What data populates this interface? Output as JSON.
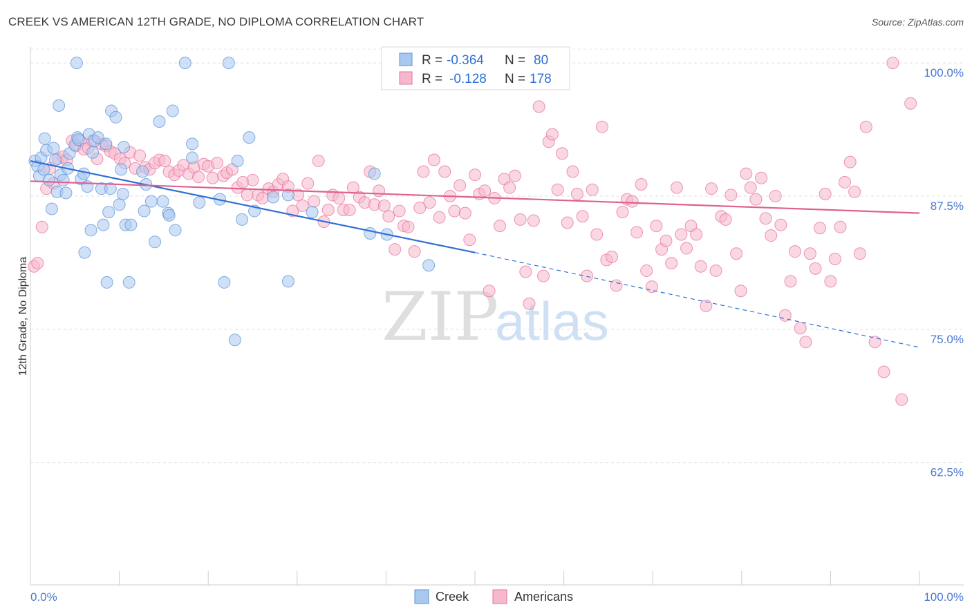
{
  "header": {
    "title": "CREEK VS AMERICAN 12TH GRADE, NO DIPLOMA CORRELATION CHART",
    "source": "Source: ZipAtlas.com"
  },
  "watermark": {
    "zip": "ZIP",
    "atlas": "atlas"
  },
  "chart_data": {
    "type": "scatter",
    "title": "CREEK VS AMERICAN 12TH GRADE, NO DIPLOMA CORRELATION CHART",
    "xlabel": "",
    "ylabel": "12th Grade, No Diploma",
    "xlim": [
      0,
      100
    ],
    "ylim": [
      51,
      101.5
    ],
    "x_tick_labels": [
      "0.0%",
      "100.0%"
    ],
    "y_ticks": [
      100,
      87.5,
      75,
      62.5
    ],
    "y_tick_labels": [
      "100.0%",
      "87.5%",
      "75.0%",
      "62.5%"
    ],
    "grid": "horizontal dashed",
    "stats": [
      {
        "series": "Creek",
        "r_label": "R =",
        "r": "-0.364",
        "n_label": "N =",
        "n": "80"
      },
      {
        "series": "Americans",
        "r_label": "R =",
        "r": "-0.128",
        "n_label": "N =",
        "n": "178"
      }
    ],
    "series": [
      {
        "name": "Creek",
        "color": "#5b93d9",
        "fill": "#a9c8f0",
        "trend": {
          "x0": 0,
          "y0": 90.8,
          "x1": 50,
          "y1": 82.2,
          "dashed_to_x": 100,
          "dashed_to_y": 73.3
        },
        "points": [
          [
            0.5,
            90.8
          ],
          [
            0.8,
            90.3
          ],
          [
            1.0,
            89.4
          ],
          [
            1.2,
            91.1
          ],
          [
            1.5,
            90.0
          ],
          [
            1.6,
            92.9
          ],
          [
            1.8,
            91.8
          ],
          [
            2.1,
            89.0
          ],
          [
            2.4,
            86.3
          ],
          [
            2.6,
            92.0
          ],
          [
            2.8,
            90.9
          ],
          [
            3.0,
            87.9
          ],
          [
            3.2,
            96.0
          ],
          [
            3.4,
            89.5
          ],
          [
            3.7,
            89.0
          ],
          [
            4.0,
            87.8
          ],
          [
            4.2,
            90.1
          ],
          [
            4.4,
            91.5
          ],
          [
            5.0,
            92.3
          ],
          [
            5.2,
            100.0
          ],
          [
            5.3,
            93.0
          ],
          [
            5.4,
            92.8
          ],
          [
            5.7,
            89.1
          ],
          [
            6.0,
            89.6
          ],
          [
            6.1,
            82.2
          ],
          [
            6.4,
            88.4
          ],
          [
            6.6,
            93.3
          ],
          [
            6.8,
            84.3
          ],
          [
            7.0,
            91.6
          ],
          [
            7.2,
            92.7
          ],
          [
            7.6,
            93.0
          ],
          [
            8.0,
            88.2
          ],
          [
            8.2,
            84.8
          ],
          [
            8.5,
            92.4
          ],
          [
            8.6,
            79.4
          ],
          [
            8.8,
            86.0
          ],
          [
            9.0,
            88.2
          ],
          [
            9.1,
            95.5
          ],
          [
            9.6,
            94.9
          ],
          [
            10.0,
            86.7
          ],
          [
            10.2,
            90.0
          ],
          [
            10.4,
            87.7
          ],
          [
            10.5,
            92.1
          ],
          [
            10.7,
            84.8
          ],
          [
            11.1,
            79.4
          ],
          [
            11.3,
            84.8
          ],
          [
            12.6,
            89.8
          ],
          [
            12.8,
            86.1
          ],
          [
            13.0,
            88.6
          ],
          [
            13.6,
            87.0
          ],
          [
            14.0,
            83.2
          ],
          [
            14.5,
            94.5
          ],
          [
            14.9,
            87.0
          ],
          [
            15.5,
            85.9
          ],
          [
            15.6,
            85.7
          ],
          [
            16.0,
            95.5
          ],
          [
            16.3,
            84.3
          ],
          [
            17.4,
            100.0
          ],
          [
            18.2,
            92.4
          ],
          [
            18.2,
            91.1
          ],
          [
            19.0,
            86.9
          ],
          [
            21.3,
            87.2
          ],
          [
            21.8,
            79.4
          ],
          [
            22.3,
            100.0
          ],
          [
            23.0,
            74.0
          ],
          [
            23.3,
            90.8
          ],
          [
            23.8,
            85.3
          ],
          [
            24.6,
            93.0
          ],
          [
            25.2,
            86.1
          ],
          [
            27.3,
            87.4
          ],
          [
            29.0,
            87.6
          ],
          [
            29.0,
            79.5
          ],
          [
            31.7,
            86.0
          ],
          [
            38.2,
            84.0
          ],
          [
            38.7,
            89.6
          ],
          [
            40.1,
            83.9
          ],
          [
            44.8,
            81.0
          ]
        ]
      },
      {
        "name": "Americans",
        "color": "#e8719b",
        "fill": "#f5b8cc",
        "trend": {
          "x0": 0,
          "y0": 88.9,
          "x1": 100,
          "y1": 85.9
        },
        "points": [
          [
            0.4,
            80.9
          ],
          [
            0.8,
            81.2
          ],
          [
            1.3,
            84.6
          ],
          [
            1.8,
            88.2
          ],
          [
            2.2,
            90.1
          ],
          [
            2.6,
            88.7
          ],
          [
            3.1,
            91.0
          ],
          [
            3.7,
            91.2
          ],
          [
            4.1,
            90.9
          ],
          [
            4.7,
            92.7
          ],
          [
            5.1,
            92.2
          ],
          [
            5.6,
            92.7
          ],
          [
            6.0,
            91.9
          ],
          [
            6.5,
            92.0
          ],
          [
            7.0,
            92.7
          ],
          [
            7.5,
            91.0
          ],
          [
            8.0,
            92.4
          ],
          [
            8.5,
            92.2
          ],
          [
            9.0,
            91.7
          ],
          [
            9.5,
            91.5
          ],
          [
            10.1,
            91.0
          ],
          [
            10.6,
            90.6
          ],
          [
            11.2,
            91.6
          ],
          [
            11.8,
            90.1
          ],
          [
            12.3,
            91.3
          ],
          [
            12.9,
            90.2
          ],
          [
            13.4,
            90.0
          ],
          [
            14.0,
            90.6
          ],
          [
            14.5,
            90.9
          ],
          [
            15.1,
            90.8
          ],
          [
            15.6,
            89.8
          ],
          [
            16.2,
            89.5
          ],
          [
            16.7,
            89.9
          ],
          [
            17.2,
            90.4
          ],
          [
            17.8,
            89.6
          ],
          [
            18.4,
            90.2
          ],
          [
            18.9,
            89.3
          ],
          [
            19.5,
            90.5
          ],
          [
            20.0,
            90.3
          ],
          [
            20.5,
            89.2
          ],
          [
            21.0,
            90.6
          ],
          [
            21.7,
            89.4
          ],
          [
            22.1,
            89.7
          ],
          [
            22.7,
            90.0
          ],
          [
            23.3,
            88.3
          ],
          [
            23.9,
            88.8
          ],
          [
            24.4,
            87.6
          ],
          [
            25.0,
            89.0
          ],
          [
            25.6,
            87.6
          ],
          [
            26.1,
            87.3
          ],
          [
            26.8,
            88.2
          ],
          [
            27.3,
            87.9
          ],
          [
            27.9,
            88.6
          ],
          [
            28.4,
            89.1
          ],
          [
            29.0,
            88.4
          ],
          [
            29.5,
            86.1
          ],
          [
            30.1,
            87.6
          ],
          [
            30.6,
            86.6
          ],
          [
            31.2,
            88.7
          ],
          [
            31.9,
            87.0
          ],
          [
            32.4,
            90.8
          ],
          [
            33.0,
            85.1
          ],
          [
            33.5,
            86.2
          ],
          [
            34.0,
            87.6
          ],
          [
            34.7,
            87.3
          ],
          [
            35.2,
            86.2
          ],
          [
            35.9,
            86.2
          ],
          [
            36.3,
            88.3
          ],
          [
            37.0,
            87.4
          ],
          [
            37.6,
            86.9
          ],
          [
            38.2,
            89.8
          ],
          [
            38.7,
            86.7
          ],
          [
            39.2,
            88.0
          ],
          [
            39.8,
            86.6
          ],
          [
            40.3,
            85.6
          ],
          [
            41.0,
            82.5
          ],
          [
            41.5,
            86.1
          ],
          [
            42.0,
            84.7
          ],
          [
            42.5,
            84.6
          ],
          [
            43.2,
            82.3
          ],
          [
            43.8,
            86.4
          ],
          [
            44.2,
            89.8
          ],
          [
            44.9,
            86.9
          ],
          [
            45.4,
            90.9
          ],
          [
            46.0,
            85.5
          ],
          [
            46.6,
            89.8
          ],
          [
            47.2,
            87.5
          ],
          [
            47.7,
            86.1
          ],
          [
            48.3,
            88.5
          ],
          [
            48.9,
            85.9
          ],
          [
            49.4,
            83.4
          ],
          [
            50.0,
            89.5
          ],
          [
            50.5,
            87.7
          ],
          [
            51.1,
            88.0
          ],
          [
            51.6,
            78.6
          ],
          [
            52.2,
            87.3
          ],
          [
            52.8,
            84.7
          ],
          [
            53.3,
            89.1
          ],
          [
            53.9,
            88.3
          ],
          [
            54.5,
            89.4
          ],
          [
            55.1,
            85.3
          ],
          [
            55.7,
            80.4
          ],
          [
            56.1,
            77.4
          ],
          [
            56.6,
            85.2
          ],
          [
            57.2,
            95.9
          ],
          [
            57.7,
            80.0
          ],
          [
            58.3,
            92.6
          ],
          [
            58.7,
            93.3
          ],
          [
            59.3,
            88.1
          ],
          [
            59.8,
            91.5
          ],
          [
            60.4,
            85.0
          ],
          [
            61.0,
            89.8
          ],
          [
            61.5,
            87.7
          ],
          [
            62.1,
            85.6
          ],
          [
            62.6,
            80.0
          ],
          [
            63.2,
            88.1
          ],
          [
            63.7,
            83.9
          ],
          [
            64.3,
            94.0
          ],
          [
            64.8,
            81.5
          ],
          [
            65.4,
            81.8
          ],
          [
            65.9,
            79.1
          ],
          [
            66.6,
            86.0
          ],
          [
            67.1,
            87.2
          ],
          [
            67.7,
            87.0
          ],
          [
            68.2,
            84.1
          ],
          [
            68.7,
            88.6
          ],
          [
            69.3,
            80.5
          ],
          [
            69.9,
            79.0
          ],
          [
            70.4,
            84.7
          ],
          [
            71.0,
            82.5
          ],
          [
            71.5,
            83.3
          ],
          [
            72.1,
            81.2
          ],
          [
            72.7,
            88.3
          ],
          [
            73.2,
            83.9
          ],
          [
            73.8,
            82.6
          ],
          [
            74.3,
            84.7
          ],
          [
            74.9,
            83.9
          ],
          [
            75.4,
            80.9
          ],
          [
            76.0,
            77.2
          ],
          [
            76.6,
            88.2
          ],
          [
            77.1,
            80.5
          ],
          [
            77.7,
            85.6
          ],
          [
            78.2,
            85.3
          ],
          [
            78.8,
            87.6
          ],
          [
            79.4,
            82.1
          ],
          [
            79.9,
            78.6
          ],
          [
            80.5,
            89.6
          ],
          [
            81.0,
            88.3
          ],
          [
            81.6,
            87.2
          ],
          [
            82.2,
            89.2
          ],
          [
            82.7,
            85.4
          ],
          [
            83.3,
            83.8
          ],
          [
            83.8,
            87.5
          ],
          [
            84.4,
            84.8
          ],
          [
            84.9,
            76.3
          ],
          [
            85.5,
            79.5
          ],
          [
            86.0,
            82.3
          ],
          [
            86.6,
            75.1
          ],
          [
            87.2,
            73.8
          ],
          [
            87.7,
            82.1
          ],
          [
            88.3,
            80.7
          ],
          [
            88.8,
            84.5
          ],
          [
            89.4,
            87.7
          ],
          [
            90.0,
            79.5
          ],
          [
            90.5,
            81.6
          ],
          [
            91.1,
            84.6
          ],
          [
            91.6,
            88.8
          ],
          [
            92.2,
            90.7
          ],
          [
            92.7,
            87.9
          ],
          [
            93.3,
            82.1
          ],
          [
            94.0,
            94.0
          ],
          [
            95.0,
            73.8
          ],
          [
            96.0,
            71.0
          ],
          [
            97.0,
            100.0
          ],
          [
            98.0,
            68.4
          ],
          [
            99.0,
            96.2
          ]
        ]
      }
    ],
    "legend": [
      "Creek",
      "Americans"
    ]
  }
}
